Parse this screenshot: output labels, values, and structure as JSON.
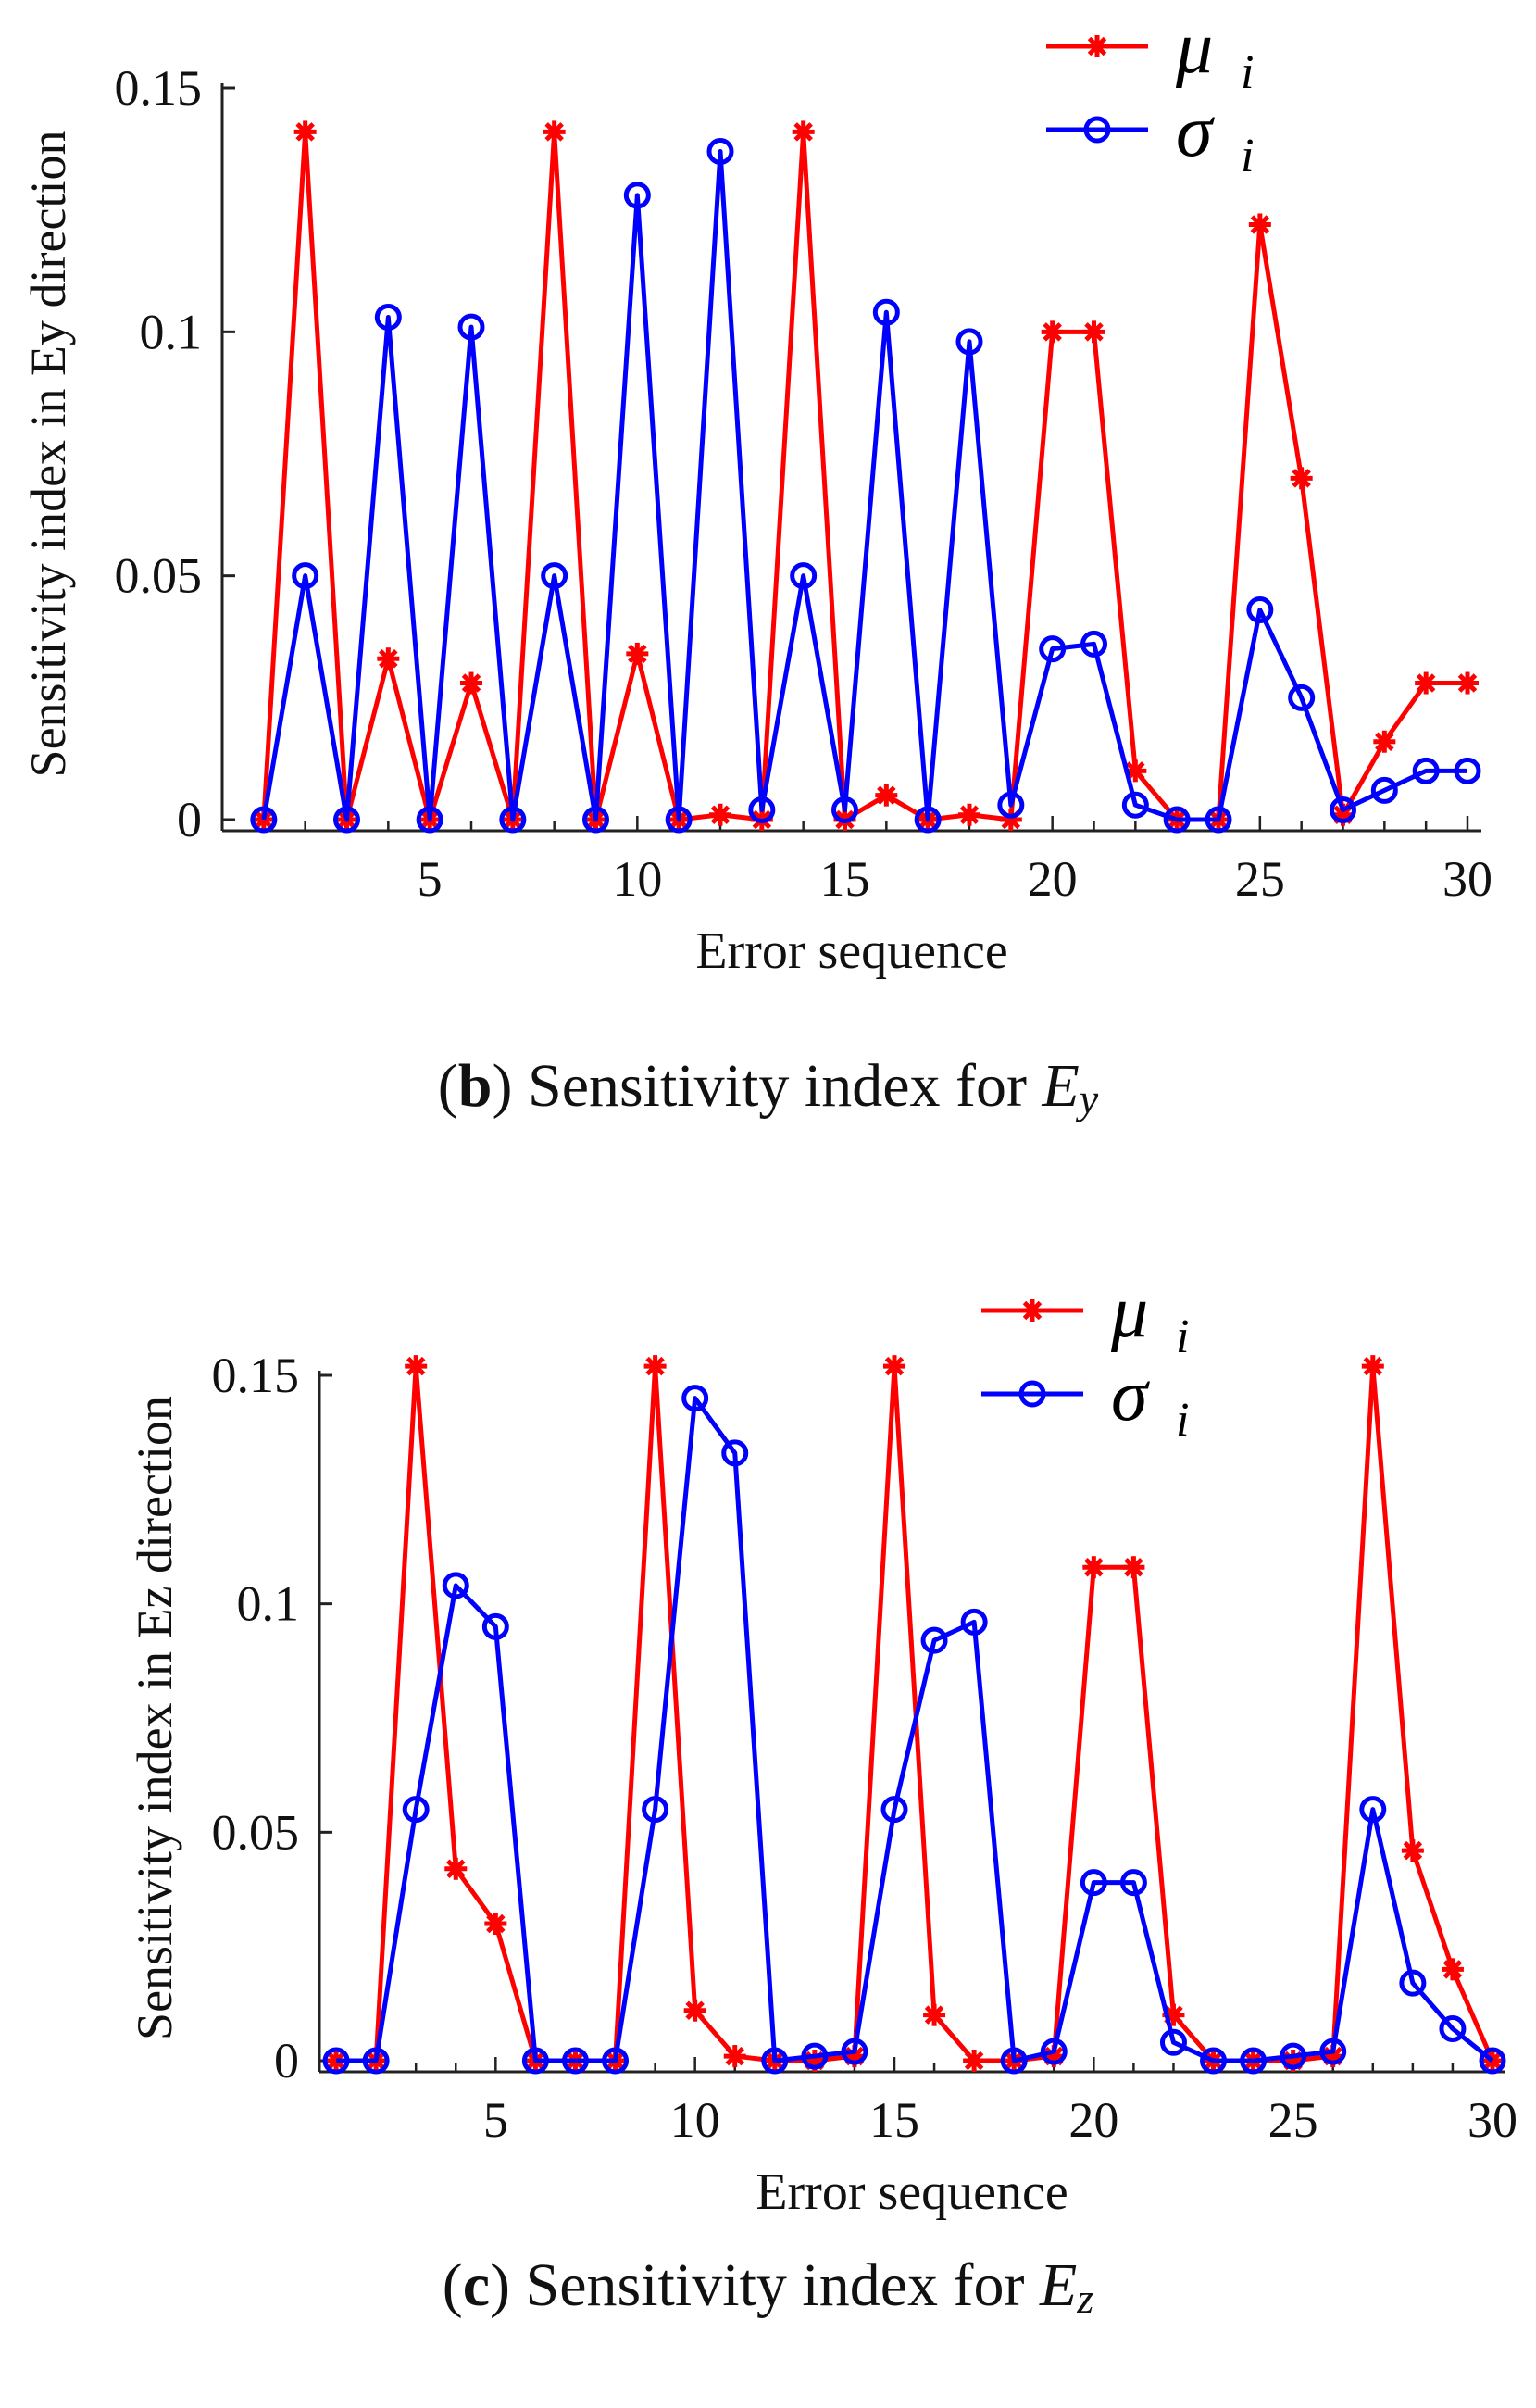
{
  "charts": [
    {
      "caption": {
        "label": "b",
        "text": "Sensitivity index for",
        "var": "E",
        "sub": "y"
      },
      "chart_data": {
        "type": "line",
        "xlabel": "Error sequence",
        "ylabel": "Sensitivity index in Ey direction",
        "xlim": [
          0,
          30
        ],
        "ylim": [
          0,
          0.15
        ],
        "xticks": [
          5,
          10,
          15,
          20,
          25,
          30
        ],
        "yticks": [
          0,
          0.05,
          0.1,
          0.15
        ],
        "ytick_labels": [
          "0",
          "0.05",
          "0.1",
          "0.15"
        ],
        "legend_position": "top-right",
        "x": [
          1,
          2,
          3,
          4,
          5,
          6,
          7,
          8,
          9,
          10,
          11,
          12,
          13,
          14,
          15,
          16,
          17,
          18,
          19,
          20,
          21,
          22,
          23,
          24,
          25,
          26,
          27,
          28,
          29,
          30
        ],
        "series": [
          {
            "name": "μ",
            "subscript": "i",
            "color": "#ff0000",
            "marker": "star",
            "values": [
              0,
              0.141,
              0,
              0.033,
              0,
              0.028,
              0,
              0.141,
              0,
              0.034,
              0,
              0.001,
              0,
              0.141,
              0,
              0.005,
              0,
              0.001,
              0,
              0.1,
              0.1,
              0.01,
              0,
              0,
              0.122,
              0.07,
              0.001,
              0.016,
              0.028,
              0.028
            ]
          },
          {
            "name": "σ",
            "subscript": "i",
            "color": "#0000ff",
            "marker": "circle",
            "values": [
              0,
              0.05,
              0,
              0.103,
              0,
              0.101,
              0,
              0.05,
              0,
              0.128,
              0,
              0.137,
              0.002,
              0.05,
              0.002,
              0.104,
              0,
              0.098,
              0.003,
              0.035,
              0.036,
              0.003,
              0,
              0,
              0.043,
              0.025,
              0.002,
              0.006,
              0.01,
              0.01
            ]
          }
        ]
      }
    },
    {
      "caption": {
        "label": "c",
        "text": "Sensitivity index for",
        "var": "E",
        "sub": "z"
      },
      "chart_data": {
        "type": "line",
        "xlabel": "Error sequence",
        "ylabel": "Sensitivity index in Ez direction",
        "xlim": [
          0,
          30
        ],
        "ylim": [
          0,
          0.15
        ],
        "xticks": [
          5,
          10,
          15,
          20,
          25,
          30
        ],
        "yticks": [
          0,
          0.05,
          0.1,
          0.15
        ],
        "ytick_labels": [
          "0",
          "0.05",
          "0.1",
          "0.15"
        ],
        "legend_position": "top-right",
        "x": [
          1,
          2,
          3,
          4,
          5,
          6,
          7,
          8,
          9,
          10,
          11,
          12,
          13,
          14,
          15,
          16,
          17,
          18,
          19,
          20,
          21,
          22,
          23,
          24,
          25,
          26,
          27,
          28,
          29,
          30
        ],
        "series": [
          {
            "name": "μ",
            "subscript": "i",
            "color": "#ff0000",
            "marker": "star",
            "values": [
              0,
              0,
              0.152,
              0.042,
              0.03,
              0,
              0,
              0,
              0.152,
              0.011,
              0.001,
              0,
              0,
              0.001,
              0.152,
              0.01,
              0,
              0,
              0.001,
              0.108,
              0.108,
              0.01,
              0,
              0,
              0,
              0.001,
              0.152,
              0.046,
              0.02,
              0
            ]
          },
          {
            "name": "σ",
            "subscript": "i",
            "color": "#0000ff",
            "marker": "circle",
            "values": [
              0,
              0,
              0.055,
              0.104,
              0.095,
              0,
              0,
              0,
              0.055,
              0.145,
              0.133,
              0,
              0.001,
              0.002,
              0.055,
              0.092,
              0.096,
              0,
              0.002,
              0.039,
              0.039,
              0.004,
              0,
              0,
              0.001,
              0.002,
              0.055,
              0.017,
              0.007,
              0
            ]
          }
        ]
      }
    }
  ]
}
